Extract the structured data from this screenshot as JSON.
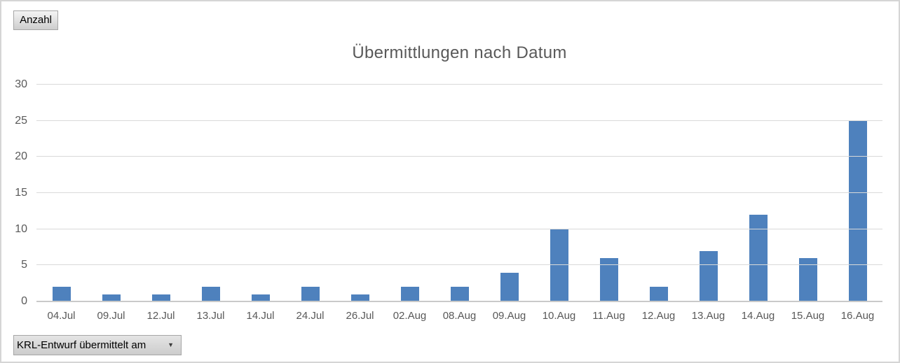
{
  "chart": {
    "value_field_button_label": "Anzahl",
    "axis_field_button_label": "KRL-Entwurf übermittelt am",
    "dropdown_arrow_glyph": "▼"
  },
  "chart_data": {
    "type": "bar",
    "title": "Übermittlungen nach Datum",
    "categories": [
      "04.Jul",
      "09.Jul",
      "12.Jul",
      "13.Jul",
      "14.Jul",
      "24.Jul",
      "26.Jul",
      "02.Aug",
      "08.Aug",
      "09.Aug",
      "10.Aug",
      "11.Aug",
      "12.Aug",
      "13.Aug",
      "14.Aug",
      "15.Aug",
      "16.Aug"
    ],
    "values": [
      2,
      1,
      1,
      2,
      1,
      2,
      1,
      2,
      2,
      4,
      10,
      6,
      2,
      7,
      12,
      6,
      25
    ],
    "xlabel": "",
    "ylabel": "",
    "ylim": [
      0,
      30
    ],
    "ytick_step": 5,
    "grid": true,
    "legend": "none",
    "bar_color": "#4E81BD",
    "text_color": "#595959",
    "gridline_color": "#D9D9D9"
  }
}
